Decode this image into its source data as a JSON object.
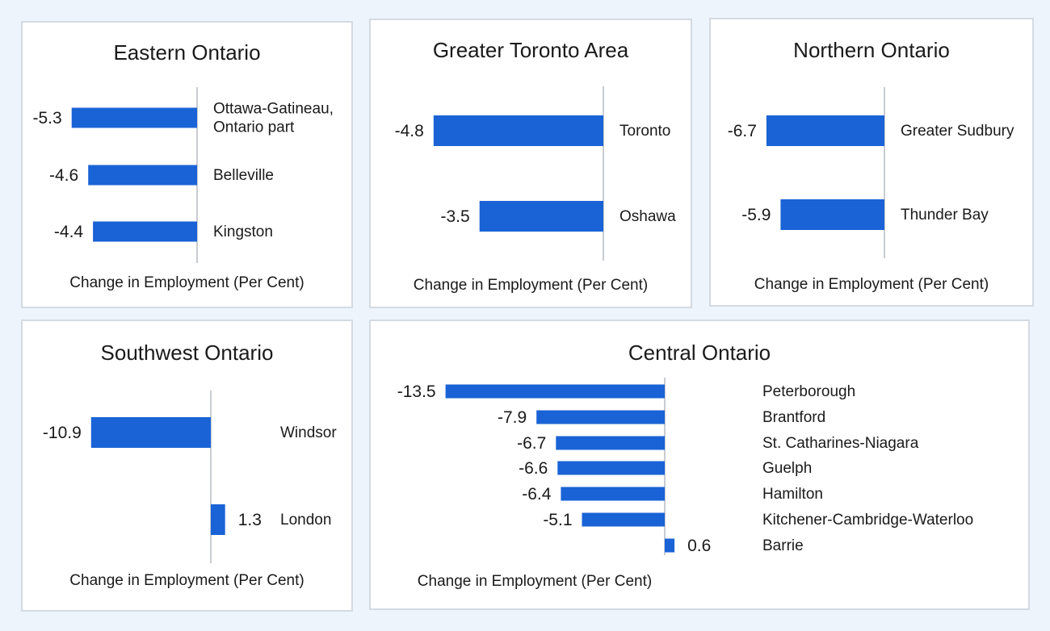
{
  "colors": {
    "bar": "#1a63d6",
    "axis": "#c9ccd1",
    "text": "#1a1a1a"
  },
  "chart_data": [
    {
      "type": "bar",
      "orientation": "horizontal",
      "title": "Eastern Ontario",
      "xlabel": "Change in Employment (Per Cent)",
      "categories": [
        "Ottawa-Gatineau, Ontario part",
        "Belleville",
        "Kingston"
      ],
      "category_lines": [
        [
          "Ottawa-Gatineau,",
          "Ontario part"
        ],
        [
          "Belleville"
        ],
        [
          "Kingston"
        ]
      ],
      "values": [
        -5.3,
        -4.6,
        -4.4
      ],
      "value_labels": [
        "-5.3",
        "-4.6",
        "-4.4"
      ]
    },
    {
      "type": "bar",
      "orientation": "horizontal",
      "title": "Greater Toronto Area",
      "xlabel": "Change in Employment (Per Cent)",
      "categories": [
        "Toronto",
        "Oshawa"
      ],
      "category_lines": [
        [
          "Toronto"
        ],
        [
          "Oshawa"
        ]
      ],
      "values": [
        -4.8,
        -3.5
      ],
      "value_labels": [
        "-4.8",
        "-3.5"
      ]
    },
    {
      "type": "bar",
      "orientation": "horizontal",
      "title": "Northern Ontario",
      "xlabel": "Change in Employment (Per Cent)",
      "categories": [
        "Greater Sudbury",
        "Thunder Bay"
      ],
      "category_lines": [
        [
          "Greater Sudbury"
        ],
        [
          "Thunder Bay"
        ]
      ],
      "values": [
        -6.7,
        -5.9
      ],
      "value_labels": [
        "-6.7",
        "-5.9"
      ]
    },
    {
      "type": "bar",
      "orientation": "horizontal",
      "title": "Southwest Ontario",
      "xlabel": "Change in Employment (Per Cent)",
      "categories": [
        "Windsor",
        "London"
      ],
      "category_lines": [
        [
          "Windsor"
        ],
        [
          "London"
        ]
      ],
      "values": [
        -10.9,
        1.3
      ],
      "value_labels": [
        "-10.9",
        "1.3"
      ]
    },
    {
      "type": "bar",
      "orientation": "horizontal",
      "title": "Central Ontario",
      "xlabel": "Change in Employment (Per Cent)",
      "categories": [
        "Peterborough",
        "Brantford",
        "St. Catharines-Niagara",
        "Guelph",
        "Hamilton",
        "Kitchener-Cambridge-Waterloo",
        "Barrie"
      ],
      "category_lines": [
        [
          "Peterborough"
        ],
        [
          "Brantford"
        ],
        [
          "St. Catharines-Niagara"
        ],
        [
          "Guelph"
        ],
        [
          "Hamilton"
        ],
        [
          "Kitchener-Cambridge-Waterloo"
        ],
        [
          "Barrie"
        ]
      ],
      "values": [
        -13.5,
        -7.9,
        -6.7,
        -6.6,
        -6.4,
        -5.1,
        0.6
      ],
      "value_labels": [
        "-13.5",
        "-7.9",
        "-6.7",
        "-6.6",
        "-6.4",
        "-5.1",
        "0.6"
      ]
    }
  ]
}
